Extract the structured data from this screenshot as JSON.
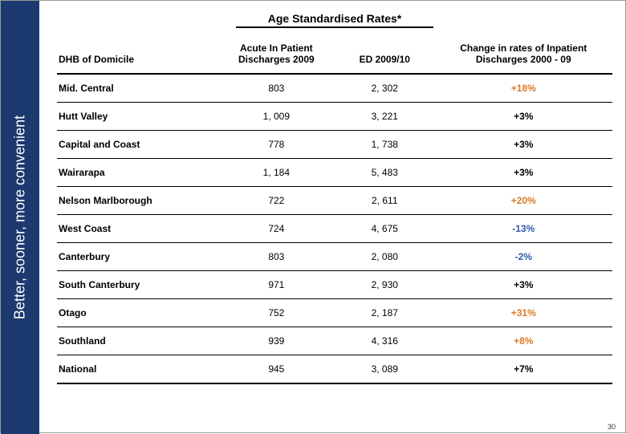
{
  "sidebar": {
    "label": "Better, sooner, more convenient",
    "background": "#1c3970",
    "text_color": "#ffffff"
  },
  "title": "Age Standardised Rates*",
  "columns": {
    "dhb": "DHB of Domicile",
    "acute": "Acute In Patient Discharges 2009",
    "ed": "ED 2009/10",
    "change": "Change in rates of Inpatient Discharges 2000 - 09"
  },
  "colors": {
    "positive_highlight": "#d97a29",
    "negative_highlight": "#2e5aa8",
    "neutral": "#000000"
  },
  "rows": [
    {
      "dhb": "Mid. Central",
      "acute": "803",
      "ed": "2, 302",
      "change": "+18%",
      "change_color": "#d97a29",
      "national": false
    },
    {
      "dhb": "Hutt Valley",
      "acute": "1, 009",
      "ed": "3, 221",
      "change": "+3%",
      "change_color": "#000000",
      "national": false
    },
    {
      "dhb": "Capital and Coast",
      "acute": "778",
      "ed": "1, 738",
      "change": "+3%",
      "change_color": "#000000",
      "national": false
    },
    {
      "dhb": "Wairarapa",
      "acute": "1, 184",
      "ed": "5, 483",
      "change": "+3%",
      "change_color": "#000000",
      "national": false
    },
    {
      "dhb": "Nelson Marlborough",
      "acute": "722",
      "ed": "2, 611",
      "change": "+20%",
      "change_color": "#d97a29",
      "national": false
    },
    {
      "dhb": "West Coast",
      "acute": "724",
      "ed": "4, 675",
      "change": "-13%",
      "change_color": "#2e5aa8",
      "national": false
    },
    {
      "dhb": "Canterbury",
      "acute": "803",
      "ed": "2, 080",
      "change": "-2%",
      "change_color": "#2e5aa8",
      "national": false
    },
    {
      "dhb": "South Canterbury",
      "acute": "971",
      "ed": "2, 930",
      "change": "+3%",
      "change_color": "#000000",
      "national": false
    },
    {
      "dhb": "Otago",
      "acute": "752",
      "ed": "2, 187",
      "change": "+31%",
      "change_color": "#d97a29",
      "national": false
    },
    {
      "dhb": "Southland",
      "acute": "939",
      "ed": "4, 316",
      "change": "+8%",
      "change_color": "#d97a29",
      "national": false
    },
    {
      "dhb": "National",
      "acute": "945",
      "ed": "3, 089",
      "change": "+7%",
      "change_color": "#000000",
      "national": true
    }
  ],
  "page_number": "30"
}
